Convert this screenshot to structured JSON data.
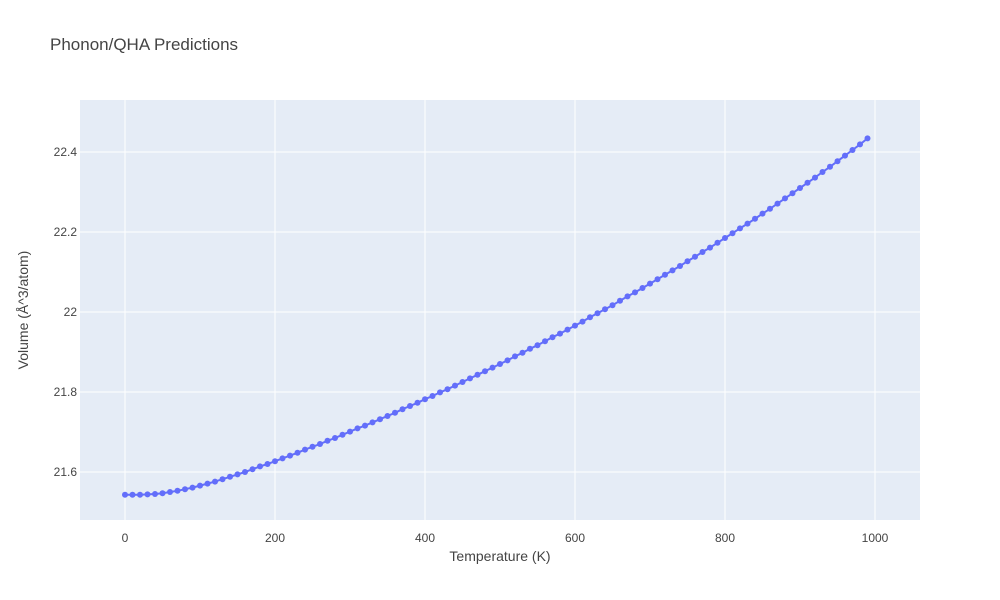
{
  "chart_data": {
    "type": "line",
    "title": "Phonon/QHA Predictions",
    "xlabel": "Temperature (K)",
    "ylabel": "Volume (Å^3/atom)",
    "xlim": [
      -60,
      1060
    ],
    "ylim": [
      21.48,
      22.53
    ],
    "xticks": [
      0,
      200,
      400,
      600,
      800,
      1000
    ],
    "xtick_labels": [
      "0",
      "200",
      "400",
      "600",
      "800",
      "1000"
    ],
    "yticks": [
      21.6,
      21.8,
      22.0,
      22.2,
      22.4
    ],
    "ytick_labels": [
      "21.6",
      "21.8",
      "22",
      "22.2",
      "22.4"
    ],
    "grid": true,
    "series": [
      {
        "color": "#636efa",
        "mode": "lines+markers",
        "x": [
          0,
          10,
          20,
          30,
          40,
          50,
          60,
          70,
          80,
          90,
          100,
          110,
          120,
          130,
          140,
          150,
          160,
          170,
          180,
          190,
          200,
          210,
          220,
          230,
          240,
          250,
          260,
          270,
          280,
          290,
          300,
          310,
          320,
          330,
          340,
          350,
          360,
          370,
          380,
          390,
          400,
          410,
          420,
          430,
          440,
          450,
          460,
          470,
          480,
          490,
          500,
          510,
          520,
          530,
          540,
          550,
          560,
          570,
          580,
          590,
          600,
          610,
          620,
          630,
          640,
          650,
          660,
          670,
          680,
          690,
          700,
          710,
          720,
          730,
          740,
          750,
          760,
          770,
          780,
          790,
          800,
          810,
          820,
          830,
          840,
          850,
          860,
          870,
          880,
          890,
          900,
          910,
          920,
          930,
          940,
          950,
          960,
          970,
          980,
          990
        ],
        "y": [
          21.543,
          21.543,
          21.543,
          21.544,
          21.545,
          21.547,
          21.55,
          21.553,
          21.557,
          21.561,
          21.566,
          21.571,
          21.576,
          21.582,
          21.588,
          21.594,
          21.6,
          21.607,
          21.614,
          21.62,
          21.627,
          21.634,
          21.641,
          21.648,
          21.656,
          21.663,
          21.67,
          21.678,
          21.685,
          21.693,
          21.701,
          21.709,
          21.716,
          21.724,
          21.732,
          21.74,
          21.748,
          21.757,
          21.765,
          21.773,
          21.782,
          21.79,
          21.799,
          21.807,
          21.816,
          21.825,
          21.834,
          21.843,
          21.852,
          21.861,
          21.87,
          21.879,
          21.889,
          21.898,
          21.908,
          21.917,
          21.927,
          21.937,
          21.946,
          21.956,
          21.966,
          21.976,
          21.987,
          21.997,
          22.007,
          22.017,
          22.028,
          22.039,
          22.049,
          22.06,
          22.071,
          22.082,
          22.093,
          22.104,
          22.115,
          22.127,
          22.138,
          22.15,
          22.161,
          22.173,
          22.185,
          22.197,
          22.209,
          22.221,
          22.233,
          22.246,
          22.258,
          22.271,
          22.284,
          22.297,
          22.31,
          22.323,
          22.336,
          22.35,
          22.363,
          22.377,
          22.391,
          22.405,
          22.419,
          22.434
        ]
      }
    ]
  }
}
